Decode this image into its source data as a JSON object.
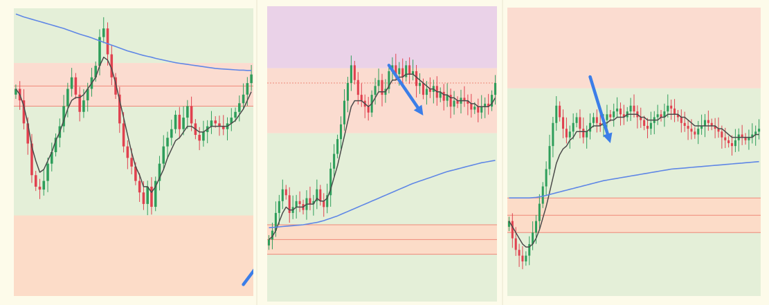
{
  "colors": {
    "page_bg": "#fdfbea",
    "green_zone": "#e4efd8",
    "red_zone": "#fbdcd0",
    "orange_zone": "#fcdcc8",
    "purple_zone": "#ead2e8",
    "candle_up": "#2e9e5b",
    "candle_down": "#e0414f",
    "ma_fast": "#4a4a4a",
    "ma_slow": "#5e86e6",
    "zone_line": "#ee8878",
    "arrow": "#3b7ee8"
  },
  "chart_data": [
    {
      "type": "candlestick",
      "title": "",
      "xlabel": "",
      "ylabel": "",
      "ylim": [
        0,
        100
      ],
      "grid": false,
      "legend": "none",
      "zones": [
        {
          "from": 81,
          "to": 100,
          "color": "green"
        },
        {
          "from": 66,
          "to": 81,
          "color": "red"
        },
        {
          "from": 28,
          "to": 66,
          "color": "green"
        },
        {
          "from": 0,
          "to": 28,
          "color": "orange"
        }
      ],
      "lines": [
        {
          "y": 73,
          "style": "solid"
        },
        {
          "y": 66,
          "style": "solid"
        }
      ],
      "closes": [
        72,
        68,
        60,
        53,
        42,
        38,
        37,
        40,
        46,
        50,
        55,
        59,
        66,
        72,
        76,
        70,
        64,
        68,
        72,
        76,
        80,
        90,
        93,
        84,
        76,
        70,
        60,
        52,
        48,
        45,
        40,
        36,
        32,
        38,
        31,
        40,
        46,
        52,
        55,
        58,
        63,
        58,
        62,
        66,
        60,
        56,
        54,
        57,
        59,
        61,
        60,
        59,
        58,
        60,
        62,
        64,
        67,
        70,
        74,
        77
      ],
      "series": [
        {
          "name": "",
          "kind": "fast_ma",
          "values": [
            72,
            70,
            66,
            60,
            52,
            47,
            43,
            44,
            47,
            50,
            54,
            57,
            61,
            65,
            68,
            69,
            69,
            70,
            72,
            74,
            76,
            80,
            83,
            82,
            79,
            74,
            68,
            62,
            56,
            50,
            45,
            42,
            38,
            38,
            36,
            38,
            41,
            44,
            48,
            51,
            54,
            55,
            57,
            59,
            59,
            58,
            57,
            57,
            58,
            59,
            59,
            59,
            59,
            59,
            60,
            61,
            63,
            65,
            68,
            71
          ]
        },
        {
          "name": "",
          "kind": "slow_ma",
          "values": [
            98,
            97.5,
            97,
            96.6,
            96.2,
            95.8,
            95.4,
            95,
            94.6,
            94.2,
            93.8,
            93.4,
            93,
            92.5,
            92,
            91.5,
            91,
            90.6,
            90.2,
            89.7,
            89.2,
            88.7,
            88.2,
            87.7,
            87.2,
            86.7,
            86.2,
            85.7,
            85.2,
            84.8,
            84.4,
            84,
            83.6,
            83.3,
            83,
            82.6,
            82.3,
            82,
            81.7,
            81.4,
            81.1,
            80.9,
            80.7,
            80.5,
            80.3,
            80.1,
            79.9,
            79.7,
            79.5,
            79.3,
            79.1,
            79,
            78.9,
            78.8,
            78.7,
            78.6,
            78.5,
            78.5,
            78.4,
            78.4
          ]
        }
      ],
      "arrow": {
        "from": [
          57,
          4
        ],
        "to": [
          84,
          54
        ],
        "direction": "up"
      }
    },
    {
      "type": "candlestick",
      "title": "",
      "xlabel": "",
      "ylabel": "",
      "ylim": [
        0,
        100
      ],
      "grid": false,
      "legend": "none",
      "zones": [
        {
          "from": 79,
          "to": 100,
          "color": "purple"
        },
        {
          "from": 57,
          "to": 79,
          "color": "red"
        },
        {
          "from": 26,
          "to": 57,
          "color": "green"
        },
        {
          "from": 16,
          "to": 26,
          "color": "orange"
        },
        {
          "from": 0,
          "to": 16,
          "color": "green"
        }
      ],
      "lines": [
        {
          "y": 74,
          "style": "dotted"
        },
        {
          "y": 26,
          "style": "solid"
        },
        {
          "y": 21,
          "style": "solid"
        },
        {
          "y": 16,
          "style": "solid"
        }
      ],
      "closes": [
        21,
        24,
        30,
        34,
        38,
        36,
        30,
        32,
        34,
        33,
        31,
        35,
        33,
        34,
        38,
        34,
        32,
        36,
        45,
        50,
        55,
        60,
        68,
        74,
        80,
        75,
        70,
        68,
        66,
        64,
        70,
        73,
        75,
        70,
        72,
        78,
        80,
        77,
        79,
        76,
        80,
        77,
        78,
        73,
        74,
        70,
        72,
        71,
        73,
        69,
        71,
        68,
        70,
        66,
        68,
        67,
        69,
        68,
        67,
        65,
        66,
        64,
        66,
        67,
        66,
        70,
        74
      ],
      "series": [
        {
          "name": "",
          "kind": "fast_ma",
          "values": [
            21,
            22,
            24,
            27,
            30,
            32,
            31,
            31,
            32,
            32,
            32,
            33,
            33,
            33,
            35,
            34,
            34,
            35,
            38,
            42,
            46,
            51,
            56,
            61,
            66,
            68,
            68,
            68,
            67,
            66,
            67,
            69,
            71,
            71,
            71,
            73,
            75,
            75,
            76,
            76,
            77,
            77,
            77,
            76,
            75,
            74,
            73,
            72,
            72,
            71,
            71,
            70,
            70,
            69,
            69,
            68,
            68,
            68,
            68,
            67,
            67,
            66,
            66,
            66,
            66,
            67,
            69
          ]
        },
        {
          "name": "",
          "kind": "slow_ma",
          "values": [
            25,
            25.1,
            25.2,
            25.3,
            25.4,
            25.5,
            25.6,
            25.7,
            25.8,
            25.9,
            26,
            26.2,
            26.4,
            26.6,
            26.8,
            27.1,
            27.4,
            27.8,
            28.2,
            28.6,
            29,
            29.5,
            30,
            30.5,
            31,
            31.5,
            32,
            32.5,
            33,
            33.5,
            34,
            34.5,
            35,
            35.5,
            36,
            36.5,
            37,
            37.5,
            38,
            38.5,
            39,
            39.5,
            40,
            40.4,
            40.8,
            41.2,
            41.6,
            42,
            42.4,
            42.8,
            43.2,
            43.6,
            44,
            44.3,
            44.6,
            44.9,
            45.2,
            45.5,
            45.8,
            46.1,
            46.4,
            46.7,
            47,
            47.2,
            47.4,
            47.6,
            47.8
          ]
        }
      ],
      "arrow": {
        "from": [
          35,
          80
        ],
        "to": [
          45,
          63
        ],
        "direction": "down"
      }
    },
    {
      "type": "candlestick",
      "title": "",
      "xlabel": "",
      "ylabel": "",
      "ylim": [
        0,
        100
      ],
      "grid": false,
      "legend": "none",
      "zones": [
        {
          "from": 72,
          "to": 100,
          "color": "red"
        },
        {
          "from": 34,
          "to": 72,
          "color": "green"
        },
        {
          "from": 22,
          "to": 34,
          "color": "orange"
        },
        {
          "from": 0,
          "to": 22,
          "color": "green"
        }
      ],
      "lines": [
        {
          "y": 34,
          "style": "solid"
        },
        {
          "y": 28,
          "style": "solid"
        },
        {
          "y": 22,
          "style": "solid"
        }
      ],
      "closes": [
        26,
        20,
        16,
        14,
        12,
        14,
        18,
        22,
        26,
        32,
        38,
        44,
        52,
        60,
        66,
        62,
        58,
        55,
        57,
        60,
        62,
        58,
        55,
        57,
        60,
        62,
        60,
        59,
        61,
        63,
        62,
        64,
        65,
        63,
        62,
        64,
        66,
        64,
        62,
        61,
        59,
        58,
        60,
        62,
        63,
        62,
        64,
        66,
        65,
        63,
        62,
        60,
        59,
        58,
        57,
        56,
        58,
        59,
        61,
        60,
        59,
        58,
        57,
        55,
        54,
        53,
        52,
        54,
        56,
        55,
        54,
        55,
        56,
        57,
        58
      ],
      "series": [
        {
          "name": "",
          "kind": "fast_ma",
          "values": [
            26,
            24,
            22,
            20,
            18,
            17,
            17,
            18,
            20,
            23,
            27,
            31,
            36,
            41,
            46,
            49,
            51,
            52,
            54,
            55,
            57,
            57,
            57,
            57,
            58,
            59,
            59,
            59,
            60,
            60,
            61,
            61,
            62,
            62,
            62,
            63,
            63,
            63,
            63,
            62,
            62,
            61,
            61,
            61,
            61,
            62,
            62,
            63,
            63,
            63,
            63,
            62,
            62,
            61,
            60,
            59,
            59,
            59,
            59,
            59,
            59,
            59,
            58,
            58,
            57,
            56,
            55,
            55,
            55,
            55,
            55,
            55,
            55,
            56,
            56
          ]
        },
        {
          "name": "",
          "kind": "slow_ma",
          "values": [
            34,
            34,
            34,
            34,
            34,
            34,
            34,
            34.1,
            34.2,
            34.4,
            34.6,
            34.9,
            35.2,
            35.5,
            35.8,
            36.1,
            36.4,
            36.7,
            37,
            37.3,
            37.6,
            37.9,
            38.2,
            38.5,
            38.8,
            39.1,
            39.4,
            39.7,
            40,
            40.2,
            40.4,
            40.6,
            40.8,
            41,
            41.2,
            41.4,
            41.6,
            41.8,
            42,
            42.2,
            42.4,
            42.6,
            42.8,
            43,
            43.2,
            43.4,
            43.6,
            43.8,
            44,
            44.1,
            44.2,
            44.3,
            44.4,
            44.5,
            44.6,
            44.7,
            44.8,
            44.9,
            45,
            45.1,
            45.2,
            45.3,
            45.4,
            45.5,
            45.6,
            45.7,
            45.8,
            45.9,
            46,
            46.1,
            46.2,
            46.3,
            46.4,
            46.5,
            46.6
          ]
        }
      ],
      "arrow": {
        "from": [
          24,
          76
        ],
        "to": [
          30,
          53
        ],
        "direction": "down"
      }
    }
  ]
}
